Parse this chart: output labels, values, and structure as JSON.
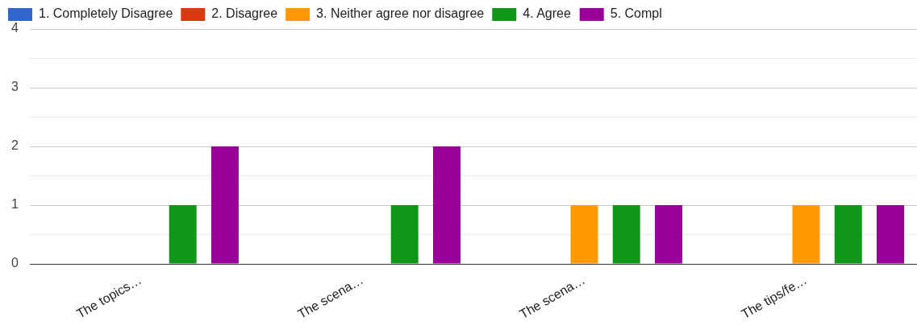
{
  "chart_data": {
    "type": "bar",
    "categories": [
      "The topics…",
      "The scena…",
      "The scena…",
      "The tips/fe…"
    ],
    "series": [
      {
        "name": "1. Completely Disagree",
        "color": "#3366cc",
        "values": [
          0,
          0,
          0,
          0
        ]
      },
      {
        "name": "2. Disagree",
        "color": "#dc3912",
        "values": [
          0,
          0,
          0,
          0
        ]
      },
      {
        "name": "3. Neither agree nor disagree",
        "color": "#ff9900",
        "values": [
          0,
          0,
          1,
          1
        ]
      },
      {
        "name": "4. Agree",
        "color": "#109618",
        "values": [
          1,
          1,
          1,
          1
        ]
      },
      {
        "name": "5. Compl",
        "color": "#990099",
        "values": [
          2,
          2,
          1,
          1
        ]
      }
    ],
    "ylim": [
      0,
      4
    ],
    "yticks": [
      0,
      {
        "value": 0.5,
        "label": null
      },
      1,
      {
        "value": 1.5,
        "label": null
      },
      2,
      {
        "value": 2.5,
        "label": null
      },
      3,
      {
        "value": 3.5,
        "label": null
      },
      4
    ],
    "grid": "y",
    "legend": "top"
  }
}
